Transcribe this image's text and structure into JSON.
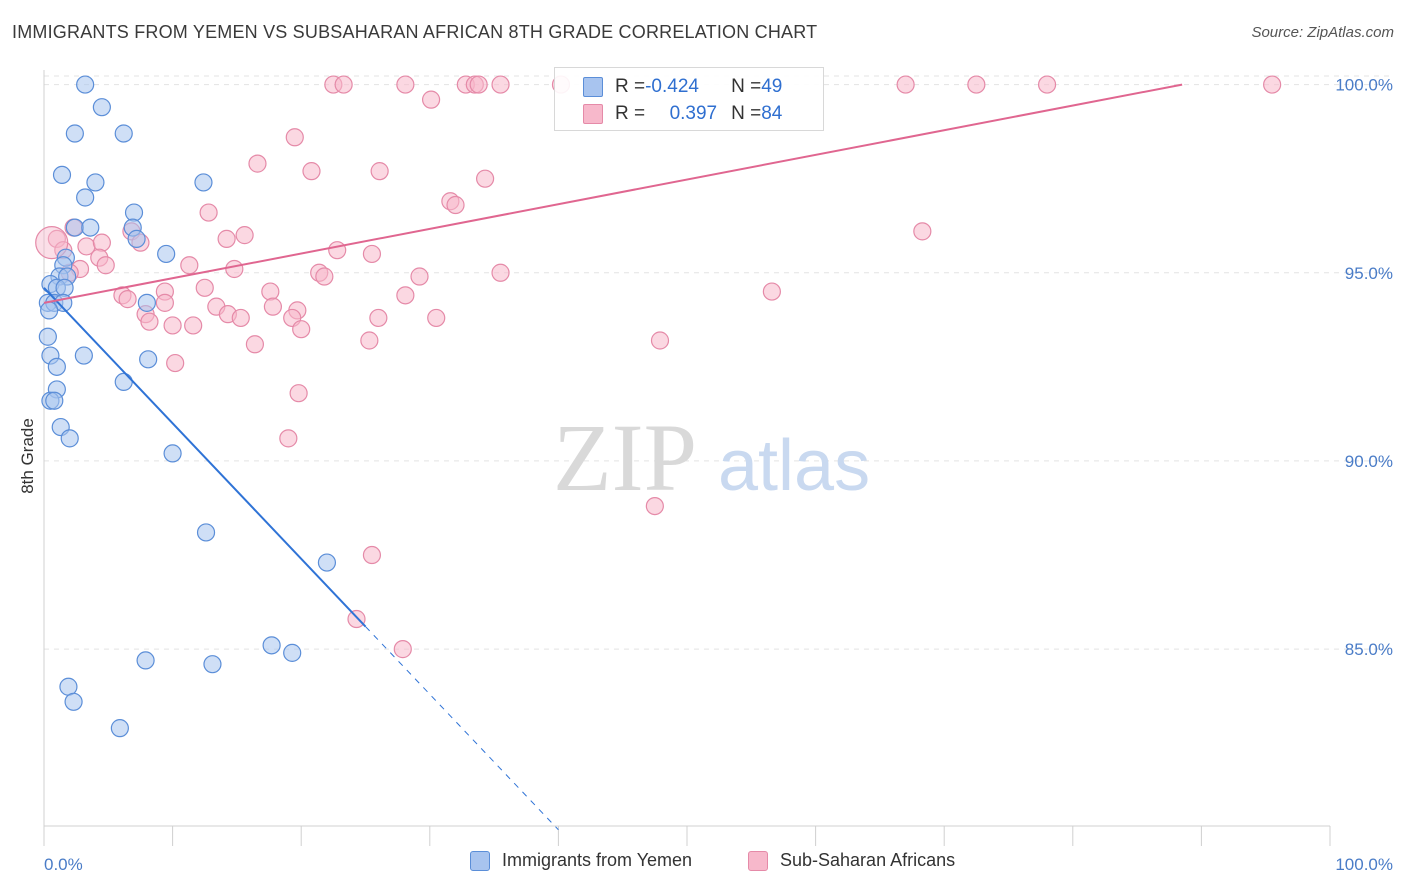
{
  "title": "IMMIGRANTS FROM YEMEN VS SUBSAHARAN AFRICAN 8TH GRADE CORRELATION CHART",
  "source": "Source: ZipAtlas.com",
  "watermark": {
    "zip": "ZIP",
    "atlas": "atlas"
  },
  "legend": {
    "rows": [
      {
        "r_key": "R = ",
        "r_value": "-0.424",
        "n_key": "N = ",
        "n_value": "49",
        "color": "#a8c4ef",
        "stroke": "#5b8ed8"
      },
      {
        "r_key": "R = ",
        "r_value": "0.397",
        "n_key": "N = ",
        "n_value": "84",
        "color": "#f7b8cb",
        "stroke": "#e58aa8"
      }
    ]
  },
  "chart_data": {
    "type": "scatter",
    "title": "IMMIGRANTS FROM YEMEN VS SUBSAHARAN AFRICAN 8TH GRADE CORRELATION CHART",
    "xlabel": "",
    "ylabel": "8th Grade",
    "xlim": [
      0,
      100
    ],
    "ylim": [
      80.3,
      100.6
    ],
    "x_tick_labels": [
      "0.0%",
      "100.0%"
    ],
    "y_ticks": [
      85,
      90,
      95,
      100
    ],
    "y_tick_labels": [
      "85.0%",
      "90.0%",
      "95.0%",
      "100.0%"
    ],
    "grid": true,
    "legend_position": "top-center",
    "series": [
      {
        "name": "Immigrants from Yemen",
        "color": "#a8c4ef",
        "stroke": "#5b8ed8",
        "line_color": "#2f73d6",
        "trend": {
          "x0": 0.0,
          "y0": 94.6,
          "x1": 25.0,
          "y1": 85.6,
          "dash_to_x": 40.0
        },
        "points": [
          [
            3.2,
            100.0
          ],
          [
            4.5,
            99.4
          ],
          [
            2.4,
            98.7
          ],
          [
            6.2,
            98.7
          ],
          [
            1.4,
            97.6
          ],
          [
            4.0,
            97.4
          ],
          [
            12.4,
            97.4
          ],
          [
            3.2,
            97.0
          ],
          [
            7.0,
            96.6
          ],
          [
            2.4,
            96.2
          ],
          [
            3.6,
            96.2
          ],
          [
            6.9,
            96.2
          ],
          [
            7.2,
            95.9
          ],
          [
            9.5,
            95.5
          ],
          [
            1.7,
            95.4
          ],
          [
            1.5,
            95.2
          ],
          [
            1.2,
            94.9
          ],
          [
            1.8,
            94.9
          ],
          [
            0.5,
            94.7
          ],
          [
            1.0,
            94.6
          ],
          [
            1.6,
            94.6
          ],
          [
            0.3,
            94.2
          ],
          [
            0.8,
            94.2
          ],
          [
            1.5,
            94.2
          ],
          [
            8.0,
            94.2
          ],
          [
            0.4,
            94.0
          ],
          [
            0.3,
            93.3
          ],
          [
            0.5,
            92.8
          ],
          [
            3.1,
            92.8
          ],
          [
            8.1,
            92.7
          ],
          [
            1.0,
            92.5
          ],
          [
            6.2,
            92.1
          ],
          [
            1.0,
            91.9
          ],
          [
            0.5,
            91.6
          ],
          [
            0.8,
            91.6
          ],
          [
            1.3,
            90.9
          ],
          [
            2.0,
            90.6
          ],
          [
            10.0,
            90.2
          ],
          [
            12.6,
            88.1
          ],
          [
            22.0,
            87.3
          ],
          [
            17.7,
            85.1
          ],
          [
            19.3,
            84.9
          ],
          [
            7.9,
            84.7
          ],
          [
            13.1,
            84.6
          ],
          [
            1.9,
            84.0
          ],
          [
            2.3,
            83.6
          ],
          [
            5.9,
            82.9
          ]
        ]
      },
      {
        "name": "Sub-Saharan Africans",
        "color": "#f7b8cb",
        "stroke": "#e58aa8",
        "line_color": "#e06690",
        "trend": {
          "x0": 0.0,
          "y0": 94.2,
          "x1": 88.5,
          "y1": 100.0
        },
        "points": [
          [
            22.5,
            100.0
          ],
          [
            23.3,
            100.0
          ],
          [
            28.1,
            100.0
          ],
          [
            32.8,
            100.0
          ],
          [
            33.5,
            100.0
          ],
          [
            33.8,
            100.0
          ],
          [
            35.5,
            100.0
          ],
          [
            40.2,
            100.0
          ],
          [
            67.0,
            100.0
          ],
          [
            72.5,
            100.0
          ],
          [
            78.0,
            100.0
          ],
          [
            95.5,
            100.0
          ],
          [
            30.1,
            99.6
          ],
          [
            19.5,
            98.6
          ],
          [
            16.6,
            97.9
          ],
          [
            20.8,
            97.7
          ],
          [
            26.1,
            97.7
          ],
          [
            34.3,
            97.5
          ],
          [
            31.6,
            96.9
          ],
          [
            32.0,
            96.8
          ],
          [
            12.8,
            96.6
          ],
          [
            68.3,
            96.1
          ],
          [
            1.0,
            95.9
          ],
          [
            2.3,
            96.2
          ],
          [
            6.8,
            96.1
          ],
          [
            14.2,
            95.9
          ],
          [
            15.6,
            96.0
          ],
          [
            7.5,
            95.8
          ],
          [
            3.3,
            95.7
          ],
          [
            4.5,
            95.8
          ],
          [
            22.8,
            95.6
          ],
          [
            25.5,
            95.5
          ],
          [
            1.5,
            95.6
          ],
          [
            4.3,
            95.4
          ],
          [
            2.8,
            95.1
          ],
          [
            11.3,
            95.2
          ],
          [
            14.8,
            95.1
          ],
          [
            2.0,
            95.0
          ],
          [
            4.8,
            95.2
          ],
          [
            21.4,
            95.0
          ],
          [
            21.8,
            94.9
          ],
          [
            29.2,
            94.9
          ],
          [
            35.5,
            95.0
          ],
          [
            12.5,
            94.6
          ],
          [
            9.4,
            94.5
          ],
          [
            17.6,
            94.5
          ],
          [
            6.1,
            94.4
          ],
          [
            6.5,
            94.3
          ],
          [
            28.1,
            94.4
          ],
          [
            56.6,
            94.5
          ],
          [
            9.4,
            94.2
          ],
          [
            17.8,
            94.1
          ],
          [
            19.7,
            94.0
          ],
          [
            13.4,
            94.1
          ],
          [
            14.3,
            93.9
          ],
          [
            7.9,
            93.9
          ],
          [
            8.2,
            93.7
          ],
          [
            10.0,
            93.6
          ],
          [
            11.6,
            93.6
          ],
          [
            15.3,
            93.8
          ],
          [
            19.3,
            93.8
          ],
          [
            26.0,
            93.8
          ],
          [
            30.5,
            93.8
          ],
          [
            20.0,
            93.5
          ],
          [
            25.3,
            93.2
          ],
          [
            47.9,
            93.2
          ],
          [
            16.4,
            93.1
          ],
          [
            10.2,
            92.6
          ],
          [
            19.8,
            91.8
          ],
          [
            19.0,
            90.6
          ],
          [
            47.5,
            88.8
          ],
          [
            25.5,
            87.5
          ],
          [
            24.3,
            85.8
          ],
          [
            27.9,
            85.0
          ]
        ]
      }
    ]
  }
}
